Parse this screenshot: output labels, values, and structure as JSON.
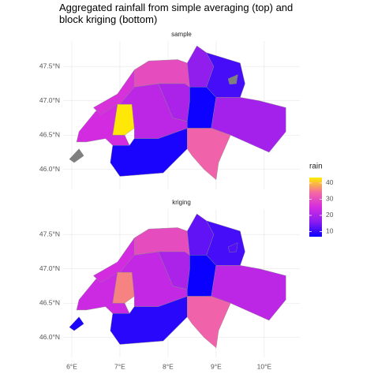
{
  "chart_data": {
    "type": "map",
    "title": [
      "Aggregated rainfall from simple averaging (top) and",
      "block kriging (bottom)"
    ],
    "xlim": [
      5.82,
      10.74
    ],
    "ylim": [
      45.71,
      47.87
    ],
    "xticks": [
      {
        "value": 6,
        "label": "6°E"
      },
      {
        "value": 7,
        "label": "7°E"
      },
      {
        "value": 8,
        "label": "8°E"
      },
      {
        "value": 9,
        "label": "9°E"
      },
      {
        "value": 10,
        "label": "10°E"
      }
    ],
    "yticks": [
      {
        "value": 46.0,
        "label": "46.0°N"
      },
      {
        "value": 46.5,
        "label": "46.5°N"
      },
      {
        "value": 47.0,
        "label": "47.0°N"
      },
      {
        "value": 47.5,
        "label": "47.5°N"
      }
    ],
    "grid": true,
    "legend": {
      "title": "rain",
      "limits": [
        6.8,
        43.4
      ],
      "ticks": [
        10,
        20,
        30,
        40
      ],
      "colors": [
        "#0a00ff",
        "#8a1cf0",
        "#d42ce0",
        "#f46aa0",
        "#ffee00"
      ],
      "na_color": "#7f7f7f"
    },
    "panels": [
      {
        "label": "sample",
        "values": [
          null,
          25,
          26,
          43,
          22,
          8,
          30,
          20,
          17,
          7,
          11,
          19,
          33,
          null
        ]
      },
      {
        "label": "kriging",
        "values": [
          8,
          24,
          25,
          36,
          23,
          9,
          30,
          20,
          13,
          6,
          11,
          22,
          33,
          12
        ]
      }
    ]
  }
}
